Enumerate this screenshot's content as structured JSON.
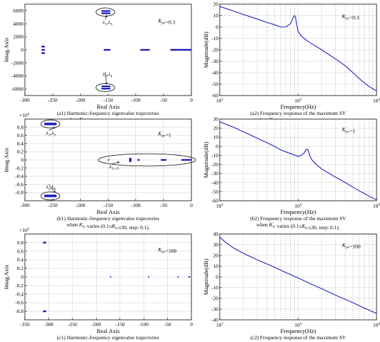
{
  "colors": {
    "series": "#1f1fbf",
    "grid": "#9a9a9a",
    "axis": "#000000"
  },
  "chart_data": [
    {
      "id": "a1",
      "type": "scatter",
      "xlabel": "Real Axis",
      "ylabel": "Imag Axis",
      "xlim": [
        -300,
        0
      ],
      "ylim": [
        -7000,
        7000
      ],
      "xticks": [
        -300,
        -250,
        -200,
        -150,
        -100,
        -50,
        0
      ],
      "yticks": [
        -6000,
        -4000,
        -2000,
        0,
        2000,
        4000,
        6000
      ],
      "ytick_labels": [
        "-6000",
        "-4000",
        "-2000",
        "0",
        "2000",
        "4000",
        "6000"
      ],
      "exponent": "",
      "grid": false,
      "param_text": "Kpv=0.3",
      "caption_line1": "(a1) Harmonic-frequency eigenvalue trajectories",
      "caption_line2": "when Kiv varies (0.1≤Kiv≤30, step: 0.5).",
      "segments": [
        {
          "x1": -270,
          "x2": -264,
          "y": 500
        },
        {
          "x1": -270,
          "x2": -264,
          "y": 0
        },
        {
          "x1": -270,
          "x2": -264,
          "y": -500
        },
        {
          "x1": -158,
          "x2": -146,
          "y": 0
        },
        {
          "x1": -92,
          "x2": -75,
          "y": 0
        },
        {
          "x1": -38,
          "x2": 0,
          "y": 0
        },
        {
          "x1": -162,
          "x2": -146,
          "y": 5950
        },
        {
          "x1": -162,
          "x2": -146,
          "y": 5600
        },
        {
          "x1": -162,
          "x2": -146,
          "y": -5600
        },
        {
          "x1": -162,
          "x2": -146,
          "y": -5950
        }
      ],
      "ellipses": [
        {
          "cx": -155,
          "cy": 5780,
          "rx": 17,
          "ry": 620
        },
        {
          "cx": -155,
          "cy": -5780,
          "rx": 17,
          "ry": 620
        }
      ],
      "annotations": [
        {
          "text": "λ1,λ3",
          "x": -160,
          "y": 4000,
          "ax": -153,
          "ay": 5300
        },
        {
          "text": "λ2,λ4",
          "x": -160,
          "y": -4000,
          "ax": -153,
          "ay": -5300
        }
      ]
    },
    {
      "id": "a2",
      "type": "line",
      "xscale": "log",
      "xlabel": "Frequency(Hz)",
      "ylabel": "Magnitude(dB)",
      "xlim": [
        100,
        10000
      ],
      "ylim": [
        -60,
        20
      ],
      "yticks": [
        -60,
        -50,
        -40,
        -30,
        -20,
        -10,
        0,
        10,
        20
      ],
      "xtick_labels": [
        "10",
        "10",
        "10"
      ],
      "xtick_exps": [
        "2",
        "3",
        "4"
      ],
      "xtick_vals": [
        100,
        1000,
        10000
      ],
      "grid": true,
      "param_text": "Kpv=0.3",
      "caption_line1": "(a2) Frequency response of the maximum SV",
      "caption_line2": "when Kiv varies (0.1≤Kiv≤30, step: 0.5).",
      "points": [
        [
          100,
          18
        ],
        [
          150,
          14
        ],
        [
          200,
          11
        ],
        [
          300,
          7
        ],
        [
          400,
          4
        ],
        [
          500,
          2
        ],
        [
          600,
          0
        ],
        [
          700,
          0
        ],
        [
          800,
          3
        ],
        [
          850,
          7
        ],
        [
          880,
          9.5
        ],
        [
          900,
          10
        ],
        [
          930,
          8
        ],
        [
          960,
          2
        ],
        [
          1000,
          -4
        ],
        [
          1100,
          -8
        ],
        [
          1300,
          -12
        ],
        [
          1600,
          -16
        ],
        [
          2000,
          -20
        ],
        [
          3000,
          -28
        ],
        [
          4000,
          -34
        ],
        [
          5000,
          -40
        ],
        [
          6000,
          -45
        ],
        [
          7000,
          -49
        ],
        [
          8000,
          -52
        ],
        [
          10000,
          -56
        ]
      ]
    },
    {
      "id": "b1",
      "type": "scatter",
      "xlabel": "Real Axis",
      "ylabel": "Imag Axis",
      "xlim": [
        -300,
        0
      ],
      "ylim": [
        -1,
        1
      ],
      "xticks": [
        -300,
        -250,
        -200,
        -150,
        -100,
        -50,
        0
      ],
      "yticks": [
        -0.8,
        -0.6,
        -0.4,
        -0.2,
        0,
        0.2,
        0.4,
        0.6,
        0.8
      ],
      "ytick_labels": [
        "-0.8",
        "-0.6",
        "-0.4",
        "-0.2",
        "0",
        "0.2",
        "0.4",
        "0.6",
        "0.8"
      ],
      "exponent": "4",
      "grid": true,
      "param_text": "Kpv=1",
      "caption_line1": "(b1) Harmonic-frequency eigenvalue trajectories",
      "caption_line2": "when Kiv varies (0.1≤Kiv≤30, step: 0.1).",
      "segments": [
        {
          "x1": -265,
          "x2": -243,
          "y": 0.89
        },
        {
          "x1": -265,
          "x2": -243,
          "y": 0.87
        },
        {
          "x1": -265,
          "x2": -243,
          "y": -0.87
        },
        {
          "x1": -265,
          "x2": -243,
          "y": -0.89
        },
        {
          "x1": -112,
          "x2": -108,
          "y": 0.03
        },
        {
          "x1": -112,
          "x2": -108,
          "y": 0
        },
        {
          "x1": -112,
          "x2": -108,
          "y": -0.03
        },
        {
          "x1": -97,
          "x2": -93,
          "y": 0
        },
        {
          "x1": -55,
          "x2": -45,
          "y": 0
        },
        {
          "x1": -18,
          "x2": 0,
          "y": 0
        },
        {
          "x1": -150,
          "x2": -148,
          "y": 0
        }
      ],
      "ellipses": [
        {
          "cx": -254,
          "cy": 0.88,
          "rx": 17,
          "ry": 0.1
        },
        {
          "cx": -254,
          "cy": -0.88,
          "rx": 17,
          "ry": 0.1
        },
        {
          "cx": -80,
          "cy": 0,
          "rx": 88,
          "ry": 0.15
        }
      ],
      "annotations": [
        {
          "text": "λ1,λ3",
          "x": -262,
          "y": 0.62,
          "ax": -245,
          "ay": 0.8
        },
        {
          "text": "λ2,λ4",
          "x": -262,
          "y": -0.7,
          "ax": -245,
          "ay": -0.8
        },
        {
          "text": "λ5~15",
          "x": -148,
          "y": -0.2,
          "ax": -130,
          "ay": -0.05
        }
      ]
    },
    {
      "id": "b2",
      "type": "line",
      "xscale": "log",
      "xlabel": "Frequency(Hz)",
      "ylabel": "Magnitude(dB)",
      "xlim": [
        100,
        10000
      ],
      "ylim": [
        -60,
        30
      ],
      "yticks": [
        -60,
        -50,
        -40,
        -30,
        -20,
        -10,
        0,
        10,
        20,
        30
      ],
      "xtick_labels": [
        "10",
        "10",
        "10"
      ],
      "xtick_exps": [
        "2",
        "3",
        "4"
      ],
      "xtick_vals": [
        100,
        1000,
        10000
      ],
      "grid": true,
      "param_text": "Kpv=1",
      "caption_line1": "(b2) Frequency response of the maximum SV",
      "caption_line2": "when Kiv varies (0.1≤Kiv≤30, step: 0.1).",
      "points": [
        [
          100,
          27
        ],
        [
          150,
          21
        ],
        [
          200,
          16
        ],
        [
          300,
          9
        ],
        [
          400,
          4
        ],
        [
          500,
          0
        ],
        [
          600,
          -4
        ],
        [
          800,
          -8
        ],
        [
          1000,
          -11
        ],
        [
          1100,
          -10
        ],
        [
          1200,
          -7
        ],
        [
          1250,
          -4
        ],
        [
          1300,
          -3
        ],
        [
          1350,
          -5
        ],
        [
          1400,
          -10
        ],
        [
          1500,
          -15
        ],
        [
          1700,
          -20
        ],
        [
          2000,
          -25
        ],
        [
          3000,
          -34
        ],
        [
          4000,
          -40
        ],
        [
          5000,
          -45
        ],
        [
          6000,
          -49
        ],
        [
          7000,
          -52
        ],
        [
          8000,
          -55
        ],
        [
          10000,
          -59
        ]
      ]
    },
    {
      "id": "c1",
      "type": "scatter",
      "xlabel": "Real Axis",
      "ylabel": "Imag Axis",
      "xlim": [
        -350,
        0
      ],
      "ylim": [
        -1,
        1
      ],
      "xticks": [
        -350,
        -300,
        -250,
        -200,
        -150,
        -100,
        -50,
        0
      ],
      "yticks": [
        -0.8,
        -0.6,
        -0.4,
        -0.2,
        0,
        0.2,
        0.4,
        0.6,
        0.8
      ],
      "ytick_labels": [
        "-0.8",
        "-0.6",
        "-0.4",
        "-0.2",
        "0",
        "0.2",
        "0.4",
        "0.6",
        "0.8"
      ],
      "exponent": "5",
      "grid": true,
      "param_text": "Kpv=100",
      "caption_line1": "(c1) Harmonic-frequency eigenvalue trajectories",
      "caption_line2": "when Kiv varies (0.1≤Kiv≤30, step: 0.1).",
      "segments": [
        {
          "x1": -312,
          "x2": -305,
          "y": 0.8
        },
        {
          "x1": -312,
          "x2": -305,
          "y": -0.8
        },
        {
          "x1": -171,
          "x2": -169,
          "y": 0
        },
        {
          "x1": -91,
          "x2": -89,
          "y": 0
        },
        {
          "x1": -29,
          "x2": -27,
          "y": 0
        },
        {
          "x1": -6,
          "x2": -3,
          "y": 0
        }
      ],
      "ellipses": [],
      "annotations": []
    },
    {
      "id": "c2",
      "type": "line",
      "xscale": "log",
      "xlabel": "Frequency(Hz)",
      "ylabel": "Magnitude(dB)",
      "xlim": [
        100,
        10000
      ],
      "ylim": [
        -40,
        40
      ],
      "yticks": [
        -40,
        -30,
        -20,
        -10,
        0,
        10,
        20,
        30,
        40
      ],
      "xtick_labels": [
        "10",
        "10",
        "10"
      ],
      "xtick_exps": [
        "2",
        "3",
        "4"
      ],
      "xtick_vals": [
        100,
        1000,
        10000
      ],
      "grid": true,
      "param_text": "Kpv=100",
      "caption_line1": "(c2) Frequency response of the maximum SV",
      "caption_line2": "when Kiv varies (0.1≤Kiv≤30, step: 0.1).",
      "points": [
        [
          100,
          37
        ],
        [
          120,
          32
        ],
        [
          150,
          27
        ],
        [
          200,
          22
        ],
        [
          300,
          16
        ],
        [
          500,
          9
        ],
        [
          700,
          4
        ],
        [
          1000,
          -1
        ],
        [
          1500,
          -7
        ],
        [
          2000,
          -11
        ],
        [
          3000,
          -17
        ],
        [
          5000,
          -24
        ],
        [
          7000,
          -29
        ],
        [
          10000,
          -34
        ]
      ]
    }
  ]
}
